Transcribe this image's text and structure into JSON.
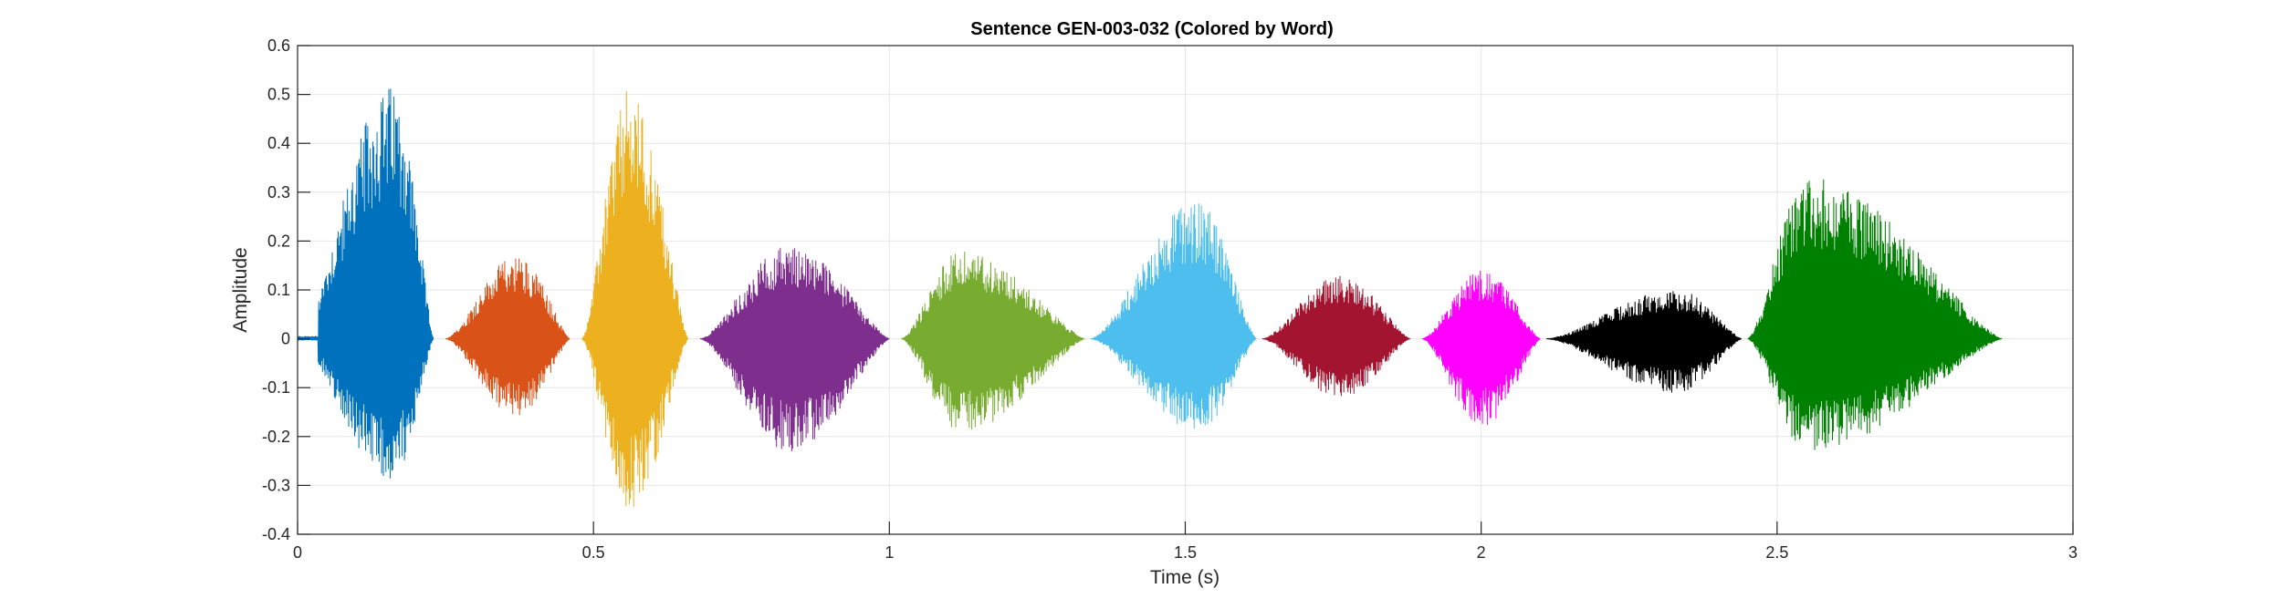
{
  "chart_data": {
    "type": "line",
    "title": "Sentence GEN-003-032 (Colored by Word)",
    "xlabel": "Time (s)",
    "ylabel": "Amplitude",
    "xlim": [
      0,
      3
    ],
    "ylim": [
      -0.4,
      0.6
    ],
    "xticks": [
      "0",
      "0.5",
      "1",
      "1.5",
      "2",
      "2.5",
      "3"
    ],
    "xtick_values": [
      0,
      0.5,
      1,
      1.5,
      2,
      2.5,
      3
    ],
    "yticks": [
      "-0.4",
      "-0.3",
      "-0.2",
      "-0.1",
      "0",
      "0.1",
      "0.2",
      "0.3",
      "0.4",
      "0.5",
      "0.6"
    ],
    "ytick_values": [
      -0.4,
      -0.3,
      -0.2,
      -0.1,
      0,
      0.1,
      0.2,
      0.3,
      0.4,
      0.5,
      0.6
    ],
    "grid": true,
    "series": [
      {
        "color": "#0072BD",
        "x_start": 0.0,
        "x_end": 0.23,
        "peak_time": 0.16,
        "max": 0.52,
        "min": -0.29,
        "noise_start": 0.035
      },
      {
        "color": "#D95319",
        "x_start": 0.25,
        "x_end": 0.46,
        "peak_time": 0.37,
        "max": 0.17,
        "min": -0.16
      },
      {
        "color": "#EDB120",
        "x_start": 0.48,
        "x_end": 0.66,
        "peak_time": 0.56,
        "max": 0.51,
        "min": -0.36
      },
      {
        "color": "#7E2F8E",
        "x_start": 0.68,
        "x_end": 1.0,
        "peak_time": 0.83,
        "max": 0.19,
        "min": -0.23
      },
      {
        "color": "#77AC30",
        "x_start": 1.02,
        "x_end": 1.33,
        "peak_time": 1.12,
        "max": 0.18,
        "min": -0.19
      },
      {
        "color": "#4DBEEE",
        "x_start": 1.34,
        "x_end": 1.62,
        "peak_time": 1.52,
        "max": 0.28,
        "min": -0.19
      },
      {
        "color": "#A2142F",
        "x_start": 1.63,
        "x_end": 1.88,
        "peak_time": 1.76,
        "max": 0.13,
        "min": -0.12
      },
      {
        "color": "#FF00FF",
        "x_start": 1.9,
        "x_end": 2.1,
        "peak_time": 2.0,
        "max": 0.14,
        "min": -0.18
      },
      {
        "color": "#000000",
        "x_start": 2.11,
        "x_end": 2.44,
        "peak_time": 2.33,
        "max": 0.1,
        "min": -0.11
      },
      {
        "color": "#008000",
        "x_start": 2.45,
        "x_end": 2.88,
        "peak_time": 2.55,
        "max": 0.33,
        "min": -0.23
      }
    ]
  }
}
